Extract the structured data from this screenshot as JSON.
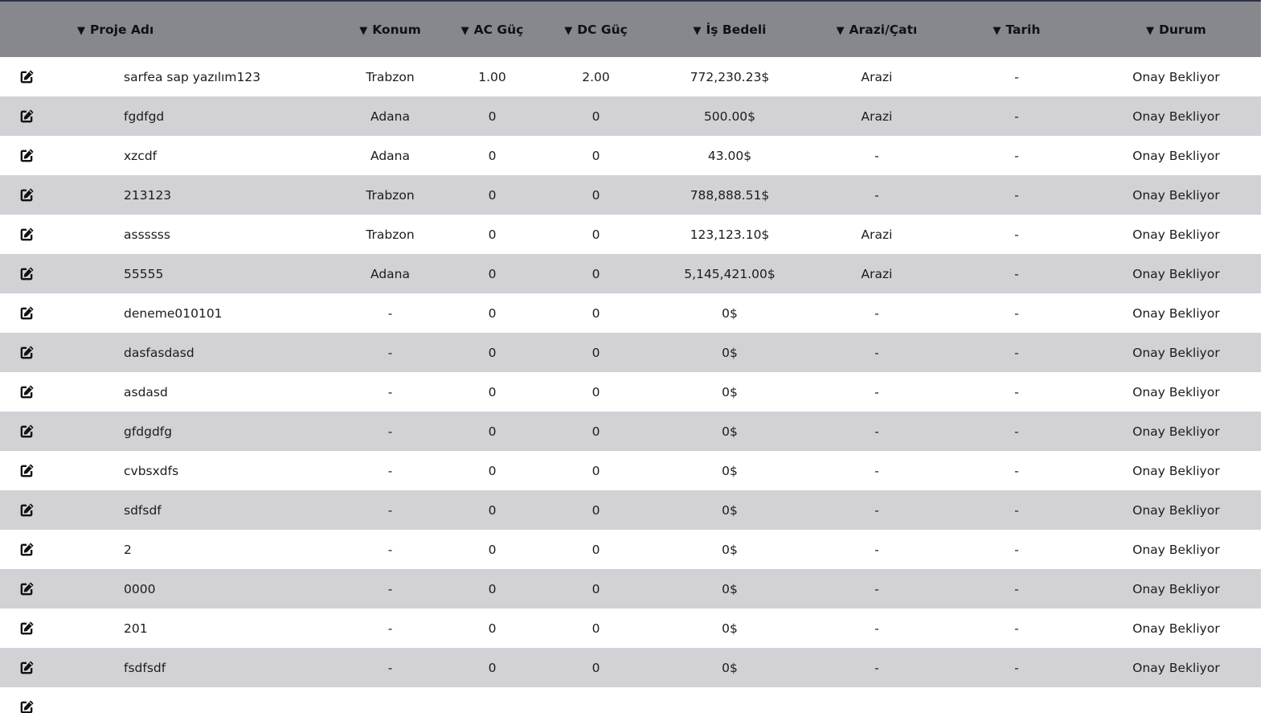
{
  "table": {
    "columns": [
      {
        "key": "name",
        "label": "Proje Adı"
      },
      {
        "key": "konum",
        "label": "Konum"
      },
      {
        "key": "ac",
        "label": "AC Güç"
      },
      {
        "key": "dc",
        "label": "DC Güç"
      },
      {
        "key": "is_bedeli",
        "label": "İş Bedeli"
      },
      {
        "key": "arazi",
        "label": "Arazi/Çatı"
      },
      {
        "key": "tarih",
        "label": "Tarih"
      },
      {
        "key": "durum",
        "label": "Durum"
      }
    ],
    "sort_arrow": "▼",
    "rows": [
      {
        "name": "sarfea sap yazılım123",
        "konum": "Trabzon",
        "ac": "1.00",
        "dc": "2.00",
        "is_bedeli": "772,230.23$",
        "arazi": "Arazi",
        "tarih": "-",
        "durum": "Onay Bekliyor"
      },
      {
        "name": "fgdfgd",
        "konum": "Adana",
        "ac": "0",
        "dc": "0",
        "is_bedeli": "500.00$",
        "arazi": "Arazi",
        "tarih": "-",
        "durum": "Onay Bekliyor"
      },
      {
        "name": "xzcdf",
        "konum": "Adana",
        "ac": "0",
        "dc": "0",
        "is_bedeli": "43.00$",
        "arazi": "-",
        "tarih": "-",
        "durum": "Onay Bekliyor"
      },
      {
        "name": "213123",
        "konum": "Trabzon",
        "ac": "0",
        "dc": "0",
        "is_bedeli": "788,888.51$",
        "arazi": "-",
        "tarih": "-",
        "durum": "Onay Bekliyor"
      },
      {
        "name": "assssss",
        "konum": "Trabzon",
        "ac": "0",
        "dc": "0",
        "is_bedeli": "123,123.10$",
        "arazi": "Arazi",
        "tarih": "-",
        "durum": "Onay Bekliyor"
      },
      {
        "name": "55555",
        "konum": "Adana",
        "ac": "0",
        "dc": "0",
        "is_bedeli": "5,145,421.00$",
        "arazi": "Arazi",
        "tarih": "-",
        "durum": "Onay Bekliyor"
      },
      {
        "name": "deneme010101",
        "konum": "-",
        "ac": "0",
        "dc": "0",
        "is_bedeli": "0$",
        "arazi": "-",
        "tarih": "-",
        "durum": "Onay Bekliyor"
      },
      {
        "name": "dasfasdasd",
        "konum": "-",
        "ac": "0",
        "dc": "0",
        "is_bedeli": "0$",
        "arazi": "-",
        "tarih": "-",
        "durum": "Onay Bekliyor"
      },
      {
        "name": "asdasd",
        "konum": "-",
        "ac": "0",
        "dc": "0",
        "is_bedeli": "0$",
        "arazi": "-",
        "tarih": "-",
        "durum": "Onay Bekliyor"
      },
      {
        "name": "gfdgdfg",
        "konum": "-",
        "ac": "0",
        "dc": "0",
        "is_bedeli": "0$",
        "arazi": "-",
        "tarih": "-",
        "durum": "Onay Bekliyor"
      },
      {
        "name": "cvbsxdfs",
        "konum": "-",
        "ac": "0",
        "dc": "0",
        "is_bedeli": "0$",
        "arazi": "-",
        "tarih": "-",
        "durum": "Onay Bekliyor"
      },
      {
        "name": "sdfsdf",
        "konum": "-",
        "ac": "0",
        "dc": "0",
        "is_bedeli": "0$",
        "arazi": "-",
        "tarih": "-",
        "durum": "Onay Bekliyor"
      },
      {
        "name": "2",
        "konum": "-",
        "ac": "0",
        "dc": "0",
        "is_bedeli": "0$",
        "arazi": "-",
        "tarih": "-",
        "durum": "Onay Bekliyor"
      },
      {
        "name": "0000",
        "konum": "-",
        "ac": "0",
        "dc": "0",
        "is_bedeli": "0$",
        "arazi": "-",
        "tarih": "-",
        "durum": "Onay Bekliyor"
      },
      {
        "name": "201",
        "konum": "-",
        "ac": "0",
        "dc": "0",
        "is_bedeli": "0$",
        "arazi": "-",
        "tarih": "-",
        "durum": "Onay Bekliyor"
      },
      {
        "name": "fsdfsdf",
        "konum": "-",
        "ac": "0",
        "dc": "0",
        "is_bedeli": "0$",
        "arazi": "-",
        "tarih": "-",
        "durum": "Onay Bekliyor"
      },
      {
        "name": "",
        "konum": "",
        "ac": "",
        "dc": "",
        "is_bedeli": "",
        "arazi": "",
        "tarih": "",
        "durum": ""
      }
    ]
  },
  "icons": {
    "edit": "edit-icon"
  },
  "colors": {
    "header_bg": "#86888e",
    "row_alt_bg": "#d1d1d6",
    "top_border": "#2c3444"
  }
}
